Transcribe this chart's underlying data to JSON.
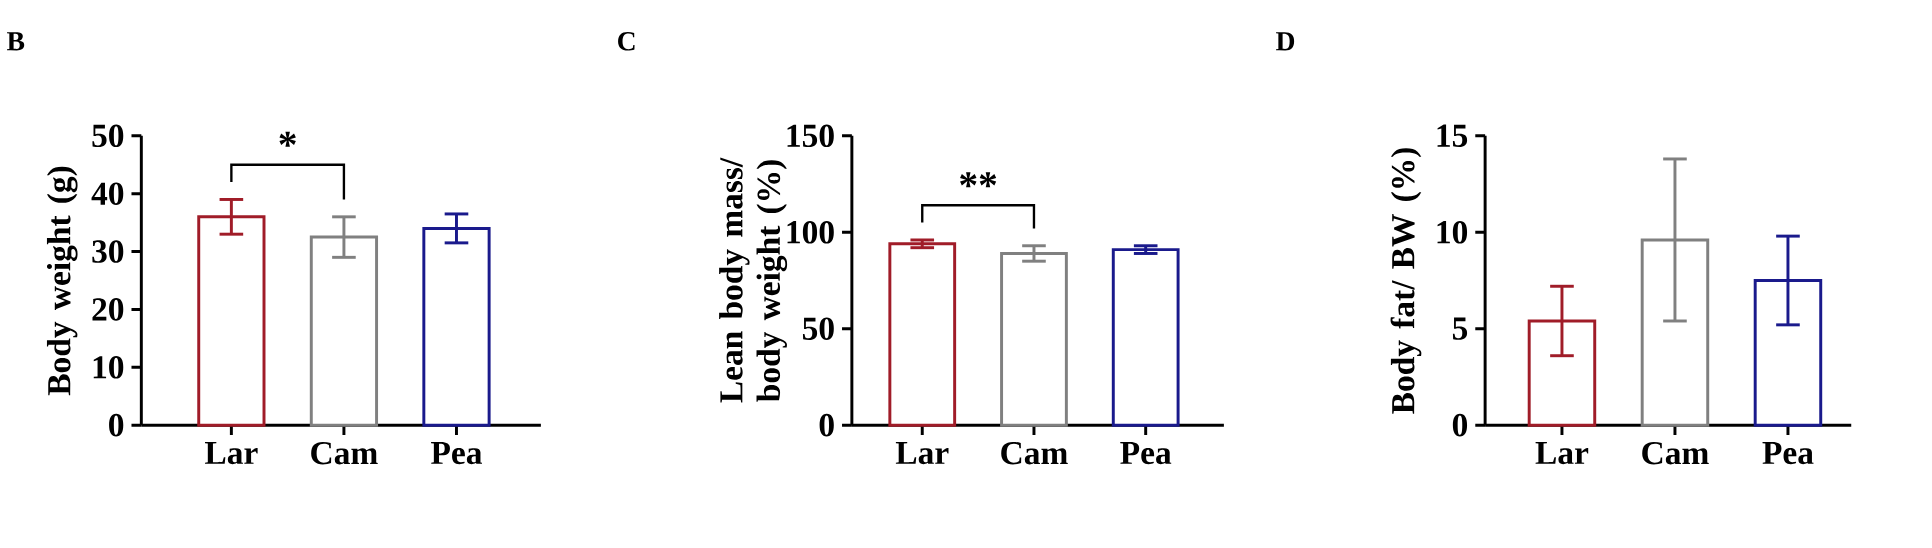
{
  "chart_data": [
    {
      "type": "bar",
      "title": "B",
      "ylabel": "Body weight (g)",
      "categories": [
        "Lar",
        "Cam",
        "Pea"
      ],
      "values": [
        36,
        32.5,
        34
      ],
      "errors": [
        3,
        3.5,
        2.5
      ],
      "colors": [
        "#a01c28",
        "#808080",
        "#1a1a8c"
      ],
      "ylim": [
        0,
        50
      ],
      "yticks": [
        0,
        10,
        20,
        30,
        40,
        50
      ],
      "annotations": [
        "*"
      ]
    },
    {
      "type": "bar",
      "title": "C",
      "ylabel": "Lean body mass/ body weight (%)",
      "categories": [
        "Lar",
        "Cam",
        "Pea"
      ],
      "values": [
        94,
        89,
        91
      ],
      "errors": [
        2,
        4,
        2
      ],
      "colors": [
        "#a01c28",
        "#808080",
        "#1a1a8c"
      ],
      "ylim": [
        0,
        150
      ],
      "yticks": [
        0,
        50,
        100,
        150
      ],
      "annotations": [
        "**"
      ]
    },
    {
      "type": "bar",
      "title": "D",
      "ylabel": "Body fat/ BW (%)",
      "categories": [
        "Lar",
        "Cam",
        "Pea"
      ],
      "values": [
        5.4,
        9.6,
        7.5
      ],
      "errors": [
        1.8,
        4.2,
        2.3
      ],
      "colors": [
        "#a01c28",
        "#808080",
        "#1a1a8c"
      ],
      "ylim": [
        0,
        15
      ],
      "yticks": [
        0,
        5,
        10,
        15
      ]
    }
  ]
}
